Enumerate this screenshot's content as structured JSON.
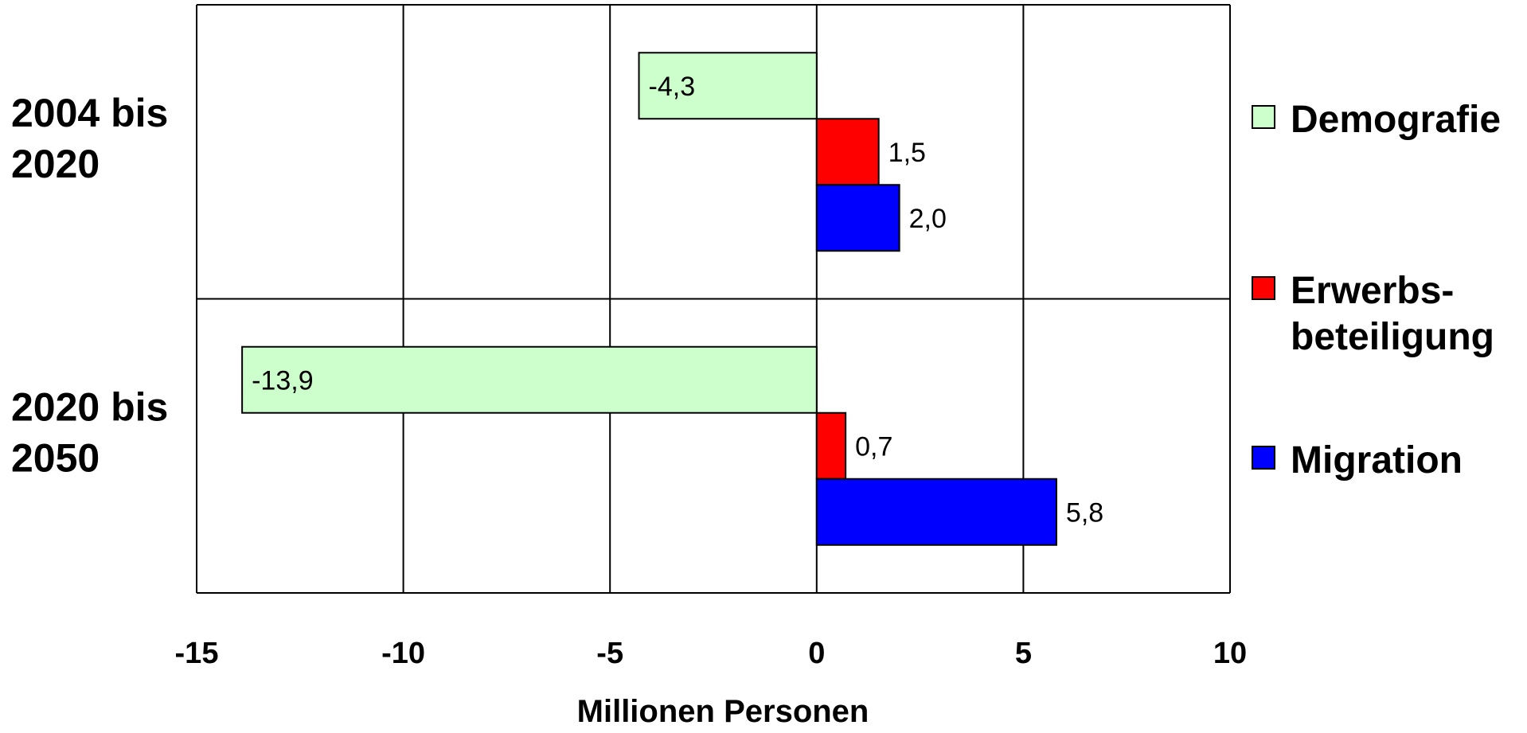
{
  "chart_data": {
    "type": "bar",
    "orientation": "horizontal",
    "title": "",
    "xlabel": "Millionen Personen",
    "ylabel": "",
    "xlim": [
      -15,
      10
    ],
    "x_ticks": [
      -15,
      -10,
      -5,
      0,
      5,
      10
    ],
    "x_tick_labels": [
      "-15",
      "-10",
      "-5",
      "0",
      "5",
      "10"
    ],
    "grid": true,
    "legend_position": "right",
    "categories": [
      {
        "lines": [
          "2004 bis",
          "2020"
        ]
      },
      {
        "lines": [
          "2020 bis",
          "2050"
        ]
      }
    ],
    "series": [
      {
        "name": "Demografie",
        "name_lines": [
          "Demografie"
        ],
        "color": "#ccffcc",
        "values": [
          -4.3,
          -13.9
        ],
        "labels": [
          "-4,3",
          "-13,9"
        ]
      },
      {
        "name": "Erwerbs-beteiligung",
        "name_lines": [
          "Erwerbs-",
          "beteiligung"
        ],
        "color": "#ff0000",
        "values": [
          1.5,
          0.7
        ],
        "labels": [
          "1,5",
          "0,7"
        ]
      },
      {
        "name": "Migration",
        "name_lines": [
          "Migration"
        ],
        "color": "#0000ff",
        "values": [
          2.0,
          5.8
        ],
        "labels": [
          "2,0",
          "5,8"
        ]
      }
    ]
  }
}
